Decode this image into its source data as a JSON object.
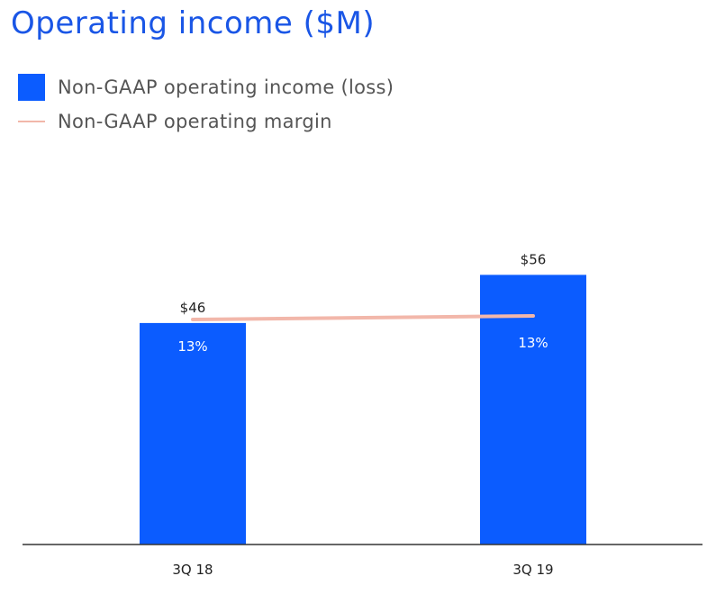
{
  "title": "Operating income ($M)",
  "legend": {
    "bar_label": "Non-GAAP operating income (loss)",
    "line_label": "Non-GAAP operating margin"
  },
  "colors": {
    "title": "#1a56e6",
    "bar": "#0b5cff",
    "line": "#f2b7aa",
    "axis": "#333333"
  },
  "chart_data": {
    "type": "bar",
    "title": "Operating income ($M)",
    "categories": [
      "3Q 18",
      "3Q 19"
    ],
    "series": [
      {
        "name": "Non-GAAP operating income (loss)",
        "type": "bar",
        "values": [
          46,
          56
        ],
        "labels": [
          "$46",
          "$56"
        ]
      },
      {
        "name": "Non-GAAP operating margin",
        "type": "line",
        "values": [
          13,
          13
        ],
        "labels": [
          "13%",
          "13%"
        ]
      }
    ],
    "xlabel": "",
    "ylabel": "",
    "grid": false,
    "legend_position": "top-left"
  }
}
